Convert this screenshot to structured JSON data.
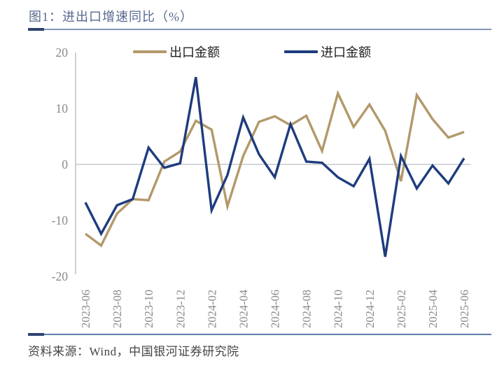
{
  "header": {
    "title": "图1：进出口增速同比（%）"
  },
  "legend": {
    "items": [
      {
        "label": "出口金额",
        "color": "#b3996a"
      },
      {
        "label": "进口金额",
        "color": "#1e3c7e"
      }
    ]
  },
  "footer": {
    "source": "资料来源：Wind，中国银河证券研究院"
  },
  "colors": {
    "title_text": "#56688e",
    "divider_light": "#8496b6",
    "divider_dark": "#2d436f",
    "axis_line": "#c3c3c3",
    "zero_line": "#cdd1d6",
    "tick_text": "#8a8a8a",
    "export_line": "#b3996a",
    "import_line": "#1e3c7e",
    "source_text": "#454545",
    "background": "#ffffff"
  },
  "chart_data": {
    "type": "line",
    "title": "进出口增速同比（%）",
    "xlabel": "",
    "ylabel": "",
    "ylim": [
      -20,
      20
    ],
    "yticks": [
      -20,
      -10,
      0,
      10,
      20
    ],
    "grid": "zero-line-only",
    "legend_position": "top-center",
    "x_tick_every": 2,
    "x": [
      "2023-06",
      "2023-07",
      "2023-08",
      "2023-09",
      "2023-10",
      "2023-11",
      "2023-12",
      "2024-01",
      "2024-02",
      "2024-03",
      "2024-04",
      "2024-05",
      "2024-06",
      "2024-07",
      "2024-08",
      "2024-09",
      "2024-10",
      "2024-11",
      "2024-12",
      "2025-01",
      "2025-02",
      "2025-03",
      "2025-04",
      "2025-05",
      "2025-06"
    ],
    "series": [
      {
        "name": "出口金额",
        "color": "#b3996a",
        "values": [
          -12.4,
          -14.5,
          -8.8,
          -6.2,
          -6.4,
          0.5,
          2.3,
          7.8,
          6.2,
          -7.5,
          1.5,
          7.6,
          8.6,
          7.0,
          8.7,
          2.4,
          12.7,
          6.7,
          10.7,
          6.0,
          -3.0,
          12.4,
          8.1,
          4.8,
          5.8
        ]
      },
      {
        "name": "进口金额",
        "color": "#1e3c7e",
        "values": [
          -6.8,
          -12.4,
          -7.3,
          -6.2,
          3.0,
          -0.6,
          0.2,
          15.6,
          -8.2,
          -1.9,
          8.4,
          1.8,
          -2.3,
          7.2,
          0.5,
          0.3,
          -2.3,
          -3.9,
          1.0,
          -16.5,
          1.5,
          -4.3,
          -0.2,
          -3.4,
          1.1
        ]
      }
    ]
  }
}
